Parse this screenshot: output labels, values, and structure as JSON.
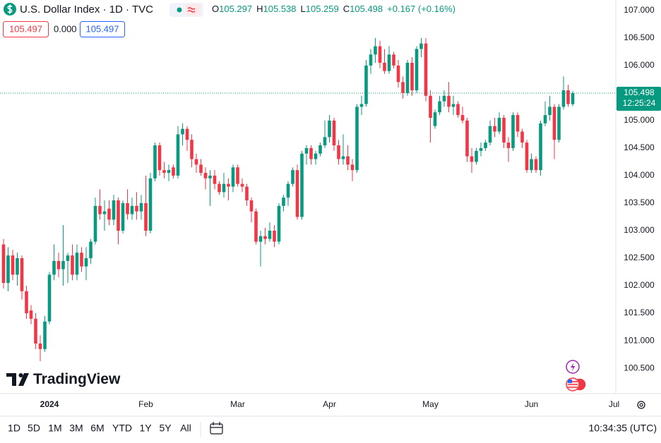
{
  "header": {
    "symbol": "U.S. Dollar Index · 1D · TVC",
    "ohlc": [
      {
        "key": "O",
        "value": "105.297"
      },
      {
        "key": "H",
        "value": "105.538"
      },
      {
        "key": "L",
        "value": "105.259"
      },
      {
        "key": "C",
        "value": "105.498"
      }
    ],
    "change": "+0.167 (+0.16%)"
  },
  "inputs": [
    "105.497",
    "0.000",
    "105.497"
  ],
  "brand": "TradingView",
  "timeframes": [
    "1D",
    "5D",
    "1M",
    "3M",
    "6M",
    "YTD",
    "1Y",
    "5Y",
    "All"
  ],
  "clock": "10:34:35 (UTC)",
  "chart_data": {
    "type": "candlestick",
    "up_color": "#089981",
    "down_color": "#f23645",
    "grid": false,
    "ylim": [
      100.04,
      107.19
    ],
    "yticks": [
      {
        "value": 100.5,
        "label": "100.500"
      },
      {
        "value": 101,
        "label": "101.000"
      },
      {
        "value": 101.5,
        "label": "101.500"
      },
      {
        "value": 102,
        "label": "102.000"
      },
      {
        "value": 102.5,
        "label": "102.500"
      },
      {
        "value": 103,
        "label": "103.000"
      },
      {
        "value": 103.5,
        "label": "103.500"
      },
      {
        "value": 104,
        "label": "104.000"
      },
      {
        "value": 104.5,
        "label": "104.500"
      },
      {
        "value": 105,
        "label": "105.000"
      },
      {
        "value": 105.5,
        "label": "105.500"
      },
      {
        "value": 106,
        "label": "106.000"
      },
      {
        "value": 106.5,
        "label": "106.500"
      },
      {
        "value": 107,
        "label": "107.000"
      }
    ],
    "last_price": {
      "value": 105.498,
      "time": "12:25:24"
    },
    "categories": [
      null,
      null,
      null,
      null,
      null,
      null,
      null,
      null,
      null,
      null,
      "2024",
      null,
      null,
      null,
      null,
      null,
      null,
      null,
      null,
      null,
      null,
      null,
      null,
      null,
      null,
      null,
      null,
      null,
      null,
      null,
      null,
      "Feb",
      null,
      null,
      null,
      null,
      null,
      null,
      null,
      null,
      null,
      null,
      null,
      null,
      null,
      null,
      null,
      null,
      null,
      null,
      null,
      "Mar",
      null,
      null,
      null,
      null,
      null,
      null,
      null,
      null,
      null,
      null,
      null,
      null,
      null,
      null,
      null,
      null,
      null,
      null,
      null,
      "Apr",
      null,
      null,
      null,
      null,
      null,
      null,
      null,
      null,
      null,
      null,
      null,
      null,
      null,
      null,
      null,
      null,
      null,
      null,
      null,
      null,
      null,
      "May",
      null,
      null,
      null,
      null,
      null,
      null,
      null,
      null,
      null,
      null,
      null,
      null,
      null,
      null,
      null,
      null,
      null,
      null,
      null,
      null,
      null,
      "Jun",
      null,
      null,
      null,
      null,
      null,
      null,
      null,
      null,
      null,
      null,
      null,
      null,
      null,
      null,
      null,
      null,
      null,
      "Jul"
    ],
    "open": [
      102.75,
      102.05,
      102.55,
      102.2,
      102.5,
      101.9,
      101.55,
      101.4,
      100.95,
      100.85,
      101.35,
      102.2,
      102.45,
      102.3,
      102.45,
      102.55,
      102.2,
      102.6,
      102.35,
      102.5,
      102.8,
      103.45,
      103.3,
      103.4,
      103.2,
      103.55,
      103.0,
      103.5,
      103.3,
      103.45,
      103.35,
      103.5,
      103.0,
      103.95,
      104.55,
      104.1,
      104.05,
      104.15,
      104.0,
      104.75,
      104.85,
      104.65,
      104.3,
      104.2,
      104.05,
      103.95,
      104.0,
      103.85,
      103.7,
      103.85,
      103.8,
      104.15,
      103.85,
      103.8,
      103.55,
      103.35,
      102.8,
      102.9,
      102.85,
      103.0,
      102.8,
      103.45,
      103.6,
      103.85,
      104.1,
      103.25,
      104.4,
      104.5,
      104.3,
      104.4,
      104.55,
      104.7,
      105.0,
      104.55,
      104.3,
      104.35,
      104.2,
      104.1,
      105.25,
      105.3,
      106.0,
      106.2,
      106.35,
      106.05,
      105.9,
      106.2,
      106.0,
      105.7,
      105.5,
      106.05,
      105.55,
      106.3,
      106.4,
      105.45,
      104.9,
      105.15,
      105.35,
      105.45,
      105.25,
      105.3,
      105.1,
      105.0,
      104.35,
      104.25,
      104.45,
      104.5,
      104.6,
      104.9,
      104.8,
      105.05,
      104.6,
      104.5,
      105.1,
      104.8,
      104.6,
      104.1,
      104.3,
      104.1,
      104.95,
      105.1,
      105.25,
      104.65,
      105.25,
      105.55,
      105.297,
      null,
      null,
      null,
      null,
      null,
      null,
      null,
      null,
      null
    ],
    "high": [
      102.85,
      102.7,
      102.65,
      102.6,
      102.55,
      102.0,
      101.65,
      101.5,
      101.1,
      101.45,
      102.25,
      102.75,
      102.6,
      103.1,
      102.6,
      102.75,
      102.75,
      102.7,
      102.7,
      102.85,
      103.6,
      103.75,
      103.55,
      103.55,
      103.65,
      103.6,
      103.55,
      103.75,
      103.6,
      103.7,
      103.65,
      104.0,
      104.05,
      104.6,
      104.6,
      104.25,
      104.2,
      104.2,
      104.9,
      104.95,
      104.9,
      104.75,
      104.4,
      104.3,
      104.15,
      104.1,
      104.1,
      103.9,
      104.05,
      103.95,
      104.2,
      104.2,
      103.95,
      103.85,
      103.6,
      103.4,
      103.0,
      103.05,
      103.15,
      103.1,
      103.5,
      103.65,
      103.9,
      104.15,
      104.2,
      104.45,
      104.55,
      104.55,
      104.45,
      104.6,
      105.0,
      105.1,
      105.05,
      104.65,
      104.75,
      104.55,
      104.3,
      105.3,
      105.45,
      106.1,
      106.3,
      106.5,
      106.45,
      106.3,
      106.35,
      106.25,
      106.1,
      105.8,
      106.1,
      106.15,
      106.35,
      106.5,
      106.5,
      105.55,
      105.2,
      105.45,
      105.55,
      105.7,
      105.45,
      105.35,
      105.25,
      105.05,
      104.5,
      104.5,
      104.6,
      104.65,
      105.0,
      105.05,
      105.15,
      105.1,
      104.7,
      105.15,
      105.15,
      104.85,
      104.65,
      104.4,
      104.35,
      105.0,
      105.35,
      105.45,
      105.3,
      105.3,
      105.8,
      105.65,
      105.538,
      null,
      null,
      null,
      null,
      null,
      null,
      null,
      null,
      null
    ],
    "low": [
      101.95,
      101.9,
      102.1,
      102.0,
      101.75,
      101.4,
      101.3,
      100.85,
      100.63,
      100.8,
      101.3,
      102.1,
      102.15,
      102.0,
      102.05,
      102.1,
      102.1,
      102.25,
      102.1,
      102.4,
      102.75,
      103.2,
      103.0,
      103.1,
      103.1,
      102.75,
      102.95,
      103.2,
      103.2,
      103.2,
      103.2,
      102.9,
      102.95,
      103.9,
      104.0,
      103.95,
      103.9,
      103.95,
      103.95,
      104.55,
      104.45,
      104.15,
      104.05,
      104.0,
      103.75,
      103.45,
      103.75,
      103.65,
      103.6,
      103.55,
      103.7,
      103.8,
      103.7,
      103.45,
      103.15,
      102.75,
      102.35,
      102.75,
      102.8,
      102.7,
      102.75,
      103.35,
      103.45,
      103.8,
      103.2,
      103.2,
      104.2,
      104.2,
      104.2,
      104.35,
      104.5,
      104.6,
      104.45,
      104.2,
      104.2,
      104.1,
      103.9,
      104.05,
      105.1,
      105.25,
      105.85,
      106.05,
      105.95,
      105.85,
      105.85,
      105.95,
      105.6,
      105.4,
      105.45,
      105.45,
      105.5,
      106.15,
      105.35,
      104.6,
      104.85,
      105.1,
      105.25,
      105.15,
      105.1,
      105.05,
      104.95,
      104.25,
      104.05,
      104.2,
      104.35,
      104.45,
      104.55,
      104.7,
      104.75,
      104.5,
      104.25,
      104.45,
      104.7,
      104.5,
      104.05,
      104.05,
      104.05,
      104.0,
      104.9,
      105.0,
      104.3,
      104.6,
      105.2,
      105.25,
      105.259,
      null,
      null,
      null,
      null,
      null,
      null,
      null,
      null,
      null
    ],
    "close": [
      102.05,
      102.55,
      102.2,
      102.5,
      101.9,
      101.5,
      101.4,
      100.95,
      100.85,
      101.35,
      102.2,
      102.45,
      102.3,
      102.45,
      102.55,
      102.2,
      102.6,
      102.35,
      102.5,
      102.8,
      103.45,
      103.3,
      103.35,
      103.2,
      103.55,
      103.0,
      103.5,
      103.3,
      103.45,
      103.35,
      103.5,
      103.0,
      103.95,
      104.55,
      104.1,
      104.05,
      104.1,
      104.0,
      104.75,
      104.85,
      104.65,
      104.3,
      104.2,
      104.05,
      103.95,
      104.0,
      103.85,
      103.7,
      103.85,
      103.8,
      104.15,
      103.85,
      103.8,
      103.55,
      103.35,
      102.8,
      102.9,
      102.85,
      103.0,
      102.8,
      103.45,
      103.6,
      103.85,
      104.1,
      103.25,
      104.4,
      104.5,
      104.3,
      104.4,
      104.55,
      104.7,
      105.0,
      104.55,
      104.3,
      104.35,
      104.2,
      104.1,
      105.25,
      105.3,
      106.0,
      106.2,
      106.35,
      106.05,
      105.9,
      106.2,
      106.0,
      105.7,
      105.5,
      106.05,
      105.55,
      106.3,
      106.4,
      105.45,
      105.05,
      105.15,
      105.35,
      105.45,
      105.25,
      105.3,
      105.1,
      105.0,
      104.35,
      104.25,
      104.45,
      104.5,
      104.6,
      104.9,
      104.8,
      105.05,
      104.6,
      104.5,
      105.1,
      104.8,
      104.6,
      104.1,
      104.3,
      104.1,
      104.95,
      105.1,
      105.25,
      104.65,
      105.25,
      105.55,
      105.3,
      105.498,
      null,
      null,
      null,
      null,
      null,
      null,
      null,
      null,
      null
    ]
  }
}
